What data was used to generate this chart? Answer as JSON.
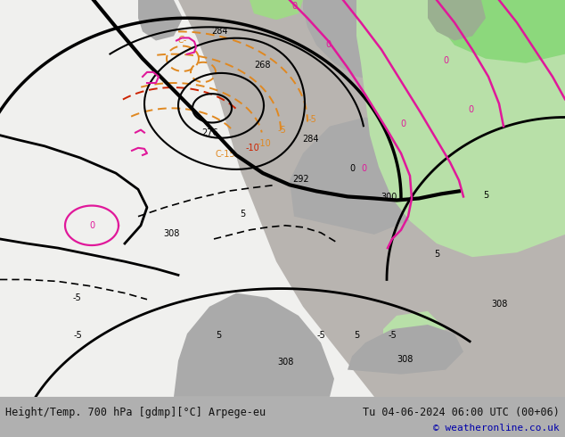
{
  "title_left": "Height/Temp. 700 hPa [gdmp][°C] Arpege-eu",
  "title_right": "Tu 04-06-2024 06:00 UTC (00+06)",
  "credit": "© weatheronline.co.uk",
  "bg_color": "#b0b0b0",
  "land_gray": "#a8a8a8",
  "ocean_gray": "#c8c8c8",
  "white_zone": "#f0f0ee",
  "green_zone": "#b8e0a8",
  "bright_green": "#8cd87c",
  "footer_bg": "#e0e0e0",
  "text_color": "#111111",
  "credit_color": "#0000aa",
  "orange": "#e08820",
  "red": "#cc2200",
  "magenta": "#e0189a",
  "black": "#000000",
  "figsize": [
    6.34,
    4.9
  ],
  "dpi": 100
}
